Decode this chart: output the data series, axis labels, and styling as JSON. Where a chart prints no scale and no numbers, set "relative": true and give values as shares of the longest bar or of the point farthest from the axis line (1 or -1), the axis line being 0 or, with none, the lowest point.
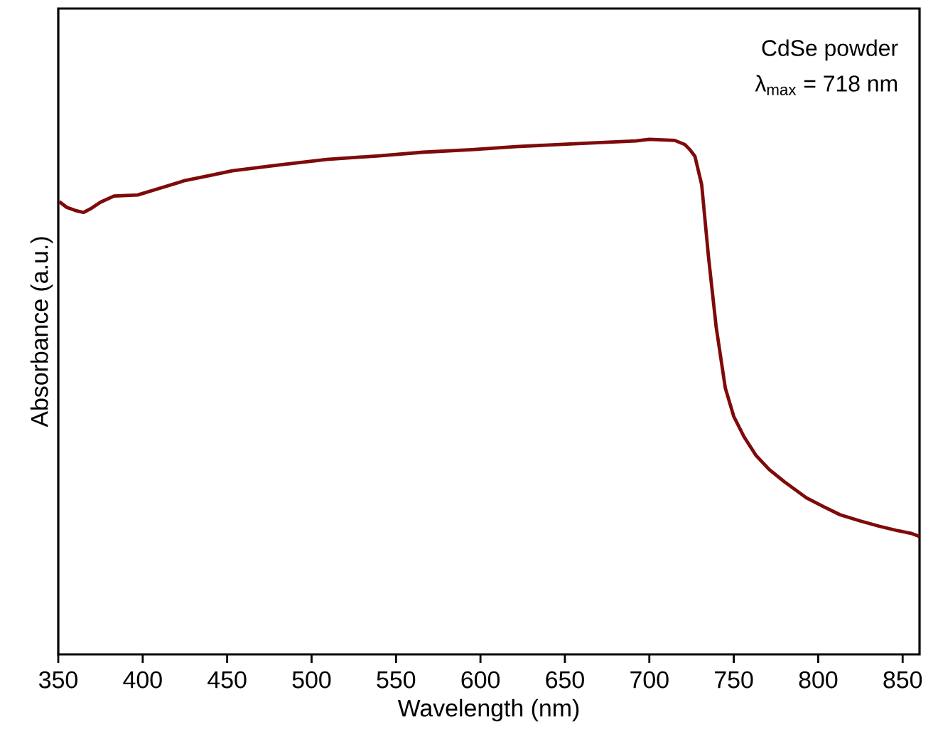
{
  "chart_data": {
    "type": "line",
    "xlabel": "Wavelength (nm)",
    "ylabel": "Absorbance (a.u.)",
    "relative": true,
    "annotations": [
      "CdSe powder",
      "λ$_{max}$ = 718 nm"
    ],
    "xlim": [
      350,
      860
    ],
    "xticks": [
      350,
      400,
      450,
      500,
      550,
      600,
      650,
      700,
      750,
      800,
      850
    ],
    "series": [
      {
        "color": "#7f0a0a",
        "x": [
          350.6,
          355,
          360,
          365,
          369,
          375,
          383,
          397,
          410,
          425,
          440,
          453,
          480,
          509,
          540,
          566,
          595,
          621,
          660,
          692,
          700,
          715,
          721,
          724,
          727,
          731,
          735,
          739.6,
          745,
          750,
          756,
          763,
          771,
          780,
          793,
          803,
          813,
          825,
          836,
          846,
          855,
          860
        ],
        "values": [
          0.879,
          0.868,
          0.862,
          0.858,
          0.865,
          0.878,
          0.89,
          0.892,
          0.905,
          0.92,
          0.93,
          0.939,
          0.95,
          0.961,
          0.968,
          0.975,
          0.98,
          0.986,
          0.992,
          0.997,
          1,
          0.998,
          0.99,
          0.98,
          0.967,
          0.912,
          0.773,
          0.635,
          0.517,
          0.462,
          0.423,
          0.387,
          0.359,
          0.335,
          0.304,
          0.287,
          0.271,
          0.259,
          0.249,
          0.241,
          0.235,
          0.229
        ]
      }
    ]
  }
}
